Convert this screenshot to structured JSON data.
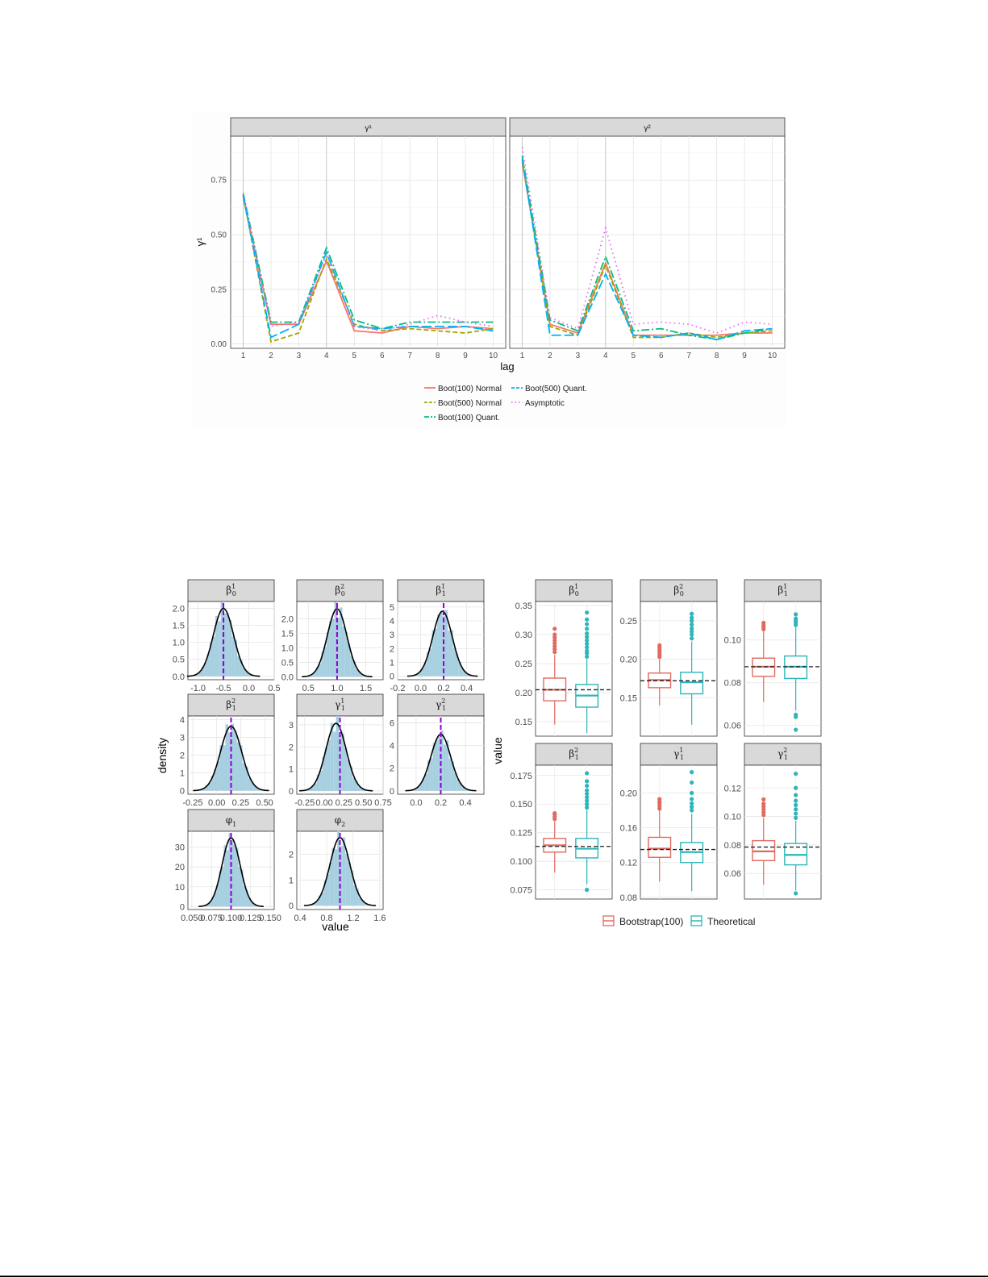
{
  "colors": {
    "boot100_normal": "#F8766D",
    "boot500_normal": "#A3A500",
    "boot100_quant": "#00BF7D",
    "boot500_quant": "#00B0F6",
    "asymptotic": "#E76BF3",
    "hist_fill": "#a6cfe0",
    "density_line": "#000000",
    "truth_line": "#8b00d9",
    "bootstrap_box": "#E16A60",
    "theoretical_box": "#2DB5B8",
    "strip_bg": "#d9d9d9"
  },
  "chart_data": [
    {
      "type": "line",
      "facets": [
        {
          "label": "γ¹",
          "x": [
            1,
            2,
            3,
            4,
            5,
            6,
            7,
            8,
            9,
            10
          ],
          "series": [
            {
              "name": "Boot(100) Normal",
              "values": [
                0.67,
                0.09,
                0.09,
                0.38,
                0.06,
                0.05,
                0.08,
                0.07,
                0.08,
                0.07
              ]
            },
            {
              "name": "Boot(500) Normal",
              "values": [
                0.68,
                0.01,
                0.05,
                0.39,
                0.09,
                0.06,
                0.07,
                0.06,
                0.05,
                0.07
              ]
            },
            {
              "name": "Boot(100) Quant.",
              "values": [
                0.69,
                0.1,
                0.1,
                0.44,
                0.11,
                0.07,
                0.1,
                0.1,
                0.1,
                0.1
              ]
            },
            {
              "name": "Boot(500) Quant.",
              "values": [
                0.68,
                0.03,
                0.09,
                0.42,
                0.08,
                0.07,
                0.08,
                0.08,
                0.08,
                0.06
              ]
            },
            {
              "name": "Asymptotic",
              "values": [
                0.69,
                0.08,
                0.1,
                0.41,
                0.08,
                0.06,
                0.09,
                0.13,
                0.1,
                0.08
              ]
            }
          ]
        },
        {
          "label": "γ²",
          "x": [
            1,
            2,
            3,
            4,
            5,
            6,
            7,
            8,
            9,
            10
          ],
          "series": [
            {
              "name": "Boot(100) Normal",
              "values": [
                0.83,
                0.09,
                0.05,
                0.37,
                0.04,
                0.04,
                0.04,
                0.04,
                0.05,
                0.05
              ]
            },
            {
              "name": "Boot(500) Normal",
              "values": [
                0.84,
                0.08,
                0.04,
                0.36,
                0.03,
                0.03,
                0.05,
                0.03,
                0.05,
                0.06
              ]
            },
            {
              "name": "Boot(100) Quant.",
              "values": [
                0.86,
                0.11,
                0.06,
                0.4,
                0.06,
                0.07,
                0.04,
                0.02,
                0.05,
                0.07
              ]
            },
            {
              "name": "Boot(500) Quant.",
              "values": [
                0.85,
                0.04,
                0.04,
                0.32,
                0.04,
                0.03,
                0.05,
                0.02,
                0.06,
                0.07
              ]
            },
            {
              "name": "Asymptotic",
              "values": [
                0.9,
                0.12,
                0.07,
                0.53,
                0.09,
                0.1,
                0.09,
                0.05,
                0.1,
                0.09
              ]
            }
          ]
        }
      ],
      "xlabel": "lag",
      "ylabel": "γ¹",
      "ylim": [
        -0.02,
        0.95
      ],
      "yticks": [
        "0.00",
        "0.25",
        "0.50",
        "0.75"
      ],
      "grid": true,
      "legend_placement": "bottom",
      "legend": [
        "Boot(100) Normal",
        "Boot(500) Normal",
        "Boot(100) Quant.",
        "Boot(500) Quant.",
        "Asymptotic"
      ]
    },
    {
      "type": "histogram",
      "xlabel": "value",
      "ylabel": "density",
      "grid": true,
      "panels": [
        {
          "label": "β",
          "sup": "1",
          "sub": "0",
          "mean": -0.5,
          "sd": 0.2,
          "truth": -0.5,
          "xlim": [
            -1.2,
            0.5
          ],
          "ylim": [
            -0.1,
            2.2
          ],
          "xticks": [
            "-1.0",
            "-0.5",
            "0.0",
            "0.5"
          ],
          "xtick_values": [
            -1.0,
            -0.5,
            0.0,
            0.5
          ],
          "yticks": [
            "0.0",
            "0.5",
            "1.0",
            "1.5",
            "2.0"
          ],
          "ytick_values": [
            0.0,
            0.5,
            1.0,
            1.5,
            2.0
          ]
        },
        {
          "label": "β",
          "sup": "2",
          "sub": "0",
          "mean": 1.0,
          "sd": 0.17,
          "truth": 1.0,
          "xlim": [
            0.3,
            1.8
          ],
          "ylim": [
            -0.1,
            2.6
          ],
          "xticks": [
            "0.5",
            "1.0",
            "1.5"
          ],
          "xtick_values": [
            0.5,
            1.0,
            1.5
          ],
          "yticks": [
            "0.0",
            "0.5",
            "1.0",
            "1.5",
            "2.0"
          ],
          "ytick_values": [
            0.0,
            0.5,
            1.0,
            1.5,
            2.0
          ]
        },
        {
          "label": "β",
          "sup": "1",
          "sub": "1",
          "mean": 0.19,
          "sd": 0.085,
          "truth": 0.2,
          "xlim": [
            -0.2,
            0.55
          ],
          "ylim": [
            -0.25,
            5.4
          ],
          "xticks": [
            "-0.2",
            "0.0",
            "0.2",
            "0.4"
          ],
          "xtick_values": [
            -0.2,
            0.0,
            0.2,
            0.4
          ],
          "yticks": [
            "0",
            "1",
            "2",
            "3",
            "4",
            "5"
          ],
          "ytick_values": [
            0,
            1,
            2,
            3,
            4,
            5
          ]
        },
        {
          "label": "β",
          "sup": "2",
          "sub": "1",
          "mean": 0.15,
          "sd": 0.11,
          "truth": 0.15,
          "xlim": [
            -0.3,
            0.6
          ],
          "ylim": [
            -0.2,
            4.2
          ],
          "xticks": [
            "-0.25",
            "0.00",
            "0.25",
            "0.50"
          ],
          "xtick_values": [
            -0.25,
            0.0,
            0.25,
            0.5
          ],
          "yticks": [
            "0",
            "1",
            "2",
            "3",
            "4"
          ],
          "ytick_values": [
            0,
            1,
            2,
            3,
            4
          ]
        },
        {
          "label": "γ",
          "sup": "1",
          "sub": "1",
          "mean": 0.15,
          "sd": 0.13,
          "truth": 0.2,
          "xlim": [
            -0.35,
            0.75
          ],
          "ylim": [
            -0.15,
            3.4
          ],
          "xticks": [
            "-0.25",
            "0.00",
            "0.25",
            "0.50",
            "0.75"
          ],
          "xtick_values": [
            -0.25,
            0.0,
            0.25,
            0.5,
            0.75
          ],
          "yticks": [
            "0",
            "1",
            "2",
            "3"
          ],
          "ytick_values": [
            0,
            1,
            2,
            3
          ]
        },
        {
          "label": "γ",
          "sup": "2",
          "sub": "1",
          "mean": 0.2,
          "sd": 0.08,
          "truth": 0.2,
          "xlim": [
            -0.15,
            0.55
          ],
          "ylim": [
            -0.3,
            6.6
          ],
          "xticks": [
            "0.0",
            "0.2",
            "0.4"
          ],
          "xtick_values": [
            0.0,
            0.2,
            0.4
          ],
          "yticks": [
            "0",
            "2",
            "4",
            "6"
          ],
          "ytick_values": [
            0,
            2,
            4,
            6
          ]
        },
        {
          "label": "φ",
          "sup": "",
          "sub": "1",
          "mean": 0.1,
          "sd": 0.0115,
          "truth": 0.1,
          "xlim": [
            0.045,
            0.155
          ],
          "ylim": [
            -1.5,
            38
          ],
          "xticks": [
            "0.050",
            "0.075",
            "0.100",
            "0.125",
            "0.150"
          ],
          "xtick_values": [
            0.05,
            0.075,
            0.1,
            0.125,
            0.15
          ],
          "yticks": [
            "0",
            "10",
            "20",
            "30"
          ],
          "ytick_values": [
            0,
            10,
            20,
            30
          ]
        },
        {
          "label": "φ",
          "sup": "",
          "sub": "2",
          "mean": 1.0,
          "sd": 0.15,
          "truth": 1.0,
          "xlim": [
            0.35,
            1.65
          ],
          "ylim": [
            -0.15,
            2.9
          ],
          "xticks": [
            "0.4",
            "0.8",
            "1.2",
            "1.6"
          ],
          "xtick_values": [
            0.4,
            0.8,
            1.2,
            1.6
          ],
          "yticks": [
            "0",
            "1",
            "2"
          ],
          "ytick_values": [
            0,
            1,
            2
          ]
        }
      ]
    },
    {
      "type": "boxplot",
      "xlabel": "",
      "ylabel": "value",
      "grid": true,
      "legend_placement": "bottom",
      "legend": [
        "Bootstrap(100)",
        "Theoretical"
      ],
      "panels": [
        {
          "label": "β",
          "sup": "1",
          "sub": "0",
          "ylim": [
            0.125,
            0.357
          ],
          "yticks": [
            "0.15",
            "0.20",
            "0.25",
            "0.30",
            "0.35"
          ],
          "ytick_values": [
            0.15,
            0.2,
            0.25,
            0.3,
            0.35
          ],
          "truth": 0.205,
          "boxes": [
            {
              "group": "Bootstrap(100)",
              "min": 0.145,
              "q1": 0.186,
              "median": 0.205,
              "q3": 0.225,
              "max": 0.265,
              "outliers": [
                0.27,
                0.275,
                0.28,
                0.285,
                0.29,
                0.295,
                0.3,
                0.31
              ]
            },
            {
              "group": "Theoretical",
              "min": 0.13,
              "q1": 0.175,
              "median": 0.195,
              "q3": 0.214,
              "max": 0.258,
              "outliers": [
                0.262,
                0.268,
                0.272,
                0.278,
                0.284,
                0.29,
                0.296,
                0.302,
                0.31,
                0.318,
                0.326,
                0.338
              ]
            }
          ]
        },
        {
          "label": "β",
          "sup": "2",
          "sub": "0",
          "ylim": [
            0.1,
            0.275
          ],
          "yticks": [
            "0.15",
            "0.20",
            "0.25"
          ],
          "ytick_values": [
            0.15,
            0.2,
            0.25
          ],
          "truth": 0.172,
          "boxes": [
            {
              "group": "Bootstrap(100)",
              "min": 0.14,
              "q1": 0.163,
              "median": 0.173,
              "q3": 0.182,
              "max": 0.2,
              "outliers": [
                0.203,
                0.206,
                0.209,
                0.212,
                0.215,
                0.218
              ]
            },
            {
              "group": "Theoretical",
              "min": 0.115,
              "q1": 0.155,
              "median": 0.17,
              "q3": 0.183,
              "max": 0.223,
              "outliers": [
                0.227,
                0.232,
                0.236,
                0.24,
                0.245,
                0.25,
                0.254,
                0.259
              ]
            }
          ]
        },
        {
          "label": "β",
          "sup": "1",
          "sub": "1",
          "ylim": [
            0.055,
            0.118
          ],
          "yticks": [
            "0.06",
            "0.08",
            "0.10"
          ],
          "ytick_values": [
            0.06,
            0.08,
            0.1
          ],
          "truth": 0.0875,
          "boxes": [
            {
              "group": "Bootstrap(100)",
              "min": 0.071,
              "q1": 0.083,
              "median": 0.0875,
              "q3": 0.0915,
              "max": 0.104,
              "outliers": [
                0.105,
                0.106,
                0.107,
                0.108
              ]
            },
            {
              "group": "Theoretical",
              "min": 0.067,
              "q1": 0.082,
              "median": 0.0875,
              "q3": 0.0925,
              "max": 0.106,
              "outliers": [
                0.107,
                0.108,
                0.109,
                0.11,
                0.112,
                0.065,
                0.064,
                0.058
              ]
            }
          ]
        },
        {
          "label": "β",
          "sup": "2",
          "sub": "1",
          "ylim": [
            0.067,
            0.184
          ],
          "yticks": [
            "0.075",
            "0.100",
            "0.125",
            "0.150",
            "0.175"
          ],
          "ytick_values": [
            0.075,
            0.1,
            0.125,
            0.15,
            0.175
          ],
          "truth": 0.113,
          "boxes": [
            {
              "group": "Bootstrap(100)",
              "min": 0.09,
              "q1": 0.108,
              "median": 0.114,
              "q3": 0.12,
              "max": 0.135,
              "outliers": [
                0.137,
                0.139,
                0.141,
                0.142
              ]
            },
            {
              "group": "Theoretical",
              "min": 0.08,
              "q1": 0.103,
              "median": 0.111,
              "q3": 0.12,
              "max": 0.145,
              "outliers": [
                0.147,
                0.15,
                0.153,
                0.156,
                0.159,
                0.162,
                0.166,
                0.17,
                0.177,
                0.075
              ]
            }
          ]
        },
        {
          "label": "γ",
          "sup": "1",
          "sub": "1",
          "ylim": [
            0.078,
            0.232
          ],
          "yticks": [
            "0.08",
            "0.12",
            "0.16",
            "0.20"
          ],
          "ytick_values": [
            0.08,
            0.12,
            0.16,
            0.2
          ],
          "truth": 0.135,
          "boxes": [
            {
              "group": "Bootstrap(100)",
              "min": 0.098,
              "q1": 0.126,
              "median": 0.136,
              "q3": 0.149,
              "max": 0.18,
              "outliers": [
                0.182,
                0.185,
                0.188,
                0.19,
                0.193
              ]
            },
            {
              "group": "Theoretical",
              "min": 0.087,
              "q1": 0.12,
              "median": 0.132,
              "q3": 0.143,
              "max": 0.176,
              "outliers": [
                0.18,
                0.184,
                0.188,
                0.193,
                0.2,
                0.212,
                0.224
              ]
            }
          ]
        },
        {
          "label": "γ",
          "sup": "2",
          "sub": "1",
          "ylim": [
            0.042,
            0.136
          ],
          "yticks": [
            "0.06",
            "0.08",
            "0.10",
            "0.12"
          ],
          "ytick_values": [
            0.06,
            0.08,
            0.1,
            0.12
          ],
          "truth": 0.0785,
          "boxes": [
            {
              "group": "Bootstrap(100)",
              "min": 0.052,
              "q1": 0.069,
              "median": 0.0755,
              "q3": 0.083,
              "max": 0.099,
              "outliers": [
                0.101,
                0.103,
                0.105,
                0.107,
                0.109,
                0.112
              ]
            },
            {
              "group": "Theoretical",
              "min": 0.048,
              "q1": 0.066,
              "median": 0.073,
              "q3": 0.081,
              "max": 0.097,
              "outliers": [
                0.099,
                0.102,
                0.105,
                0.108,
                0.111,
                0.115,
                0.12,
                0.13,
                0.046
              ]
            }
          ]
        }
      ]
    }
  ]
}
